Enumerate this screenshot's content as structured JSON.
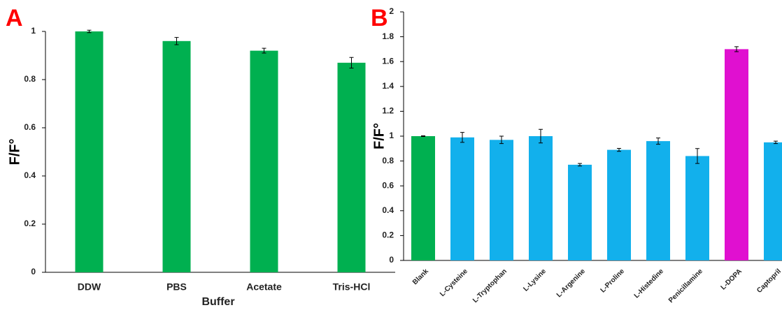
{
  "chart_data": [
    {
      "type": "bar",
      "panel": "A",
      "categories": [
        "DDW",
        "PBS",
        "Acetate",
        "Tris-HCl"
      ],
      "values": [
        1.0,
        0.96,
        0.92,
        0.87
      ],
      "errors": [
        0.005,
        0.015,
        0.01,
        0.022
      ],
      "colors": [
        "#00b050",
        "#00b050",
        "#00b050",
        "#00b050"
      ],
      "ylabel": "F/F°",
      "xlabel": "Buffer",
      "ylim": [
        0,
        1
      ],
      "yticks": [
        0,
        0.2,
        0.4,
        0.6,
        0.8,
        1
      ]
    },
    {
      "type": "bar",
      "panel": "B",
      "categories": [
        "Blank",
        "L-Cysteine",
        "L-Tryptophan",
        "L-Lysine",
        "L-Argenine",
        "L-Proline",
        "L-Histedine",
        "Penicillamine",
        "L-DOPA",
        "Captopril"
      ],
      "values": [
        1.0,
        0.99,
        0.97,
        1.0,
        0.77,
        0.89,
        0.96,
        0.84,
        1.7,
        0.95
      ],
      "errors": [
        0.003,
        0.04,
        0.03,
        0.055,
        0.01,
        0.012,
        0.025,
        0.06,
        0.02,
        0.01
      ],
      "colors": [
        "#00b050",
        "#12b0ec",
        "#12b0ec",
        "#12b0ec",
        "#12b0ec",
        "#12b0ec",
        "#12b0ec",
        "#12b0ec",
        "#e010d0",
        "#12b0ec"
      ],
      "ylabel": "F/F°",
      "ylim": [
        0,
        2
      ],
      "yticks": [
        0,
        0.2,
        0.4,
        0.6,
        0.8,
        1,
        1.2,
        1.4,
        1.6,
        1.8,
        2
      ]
    }
  ]
}
